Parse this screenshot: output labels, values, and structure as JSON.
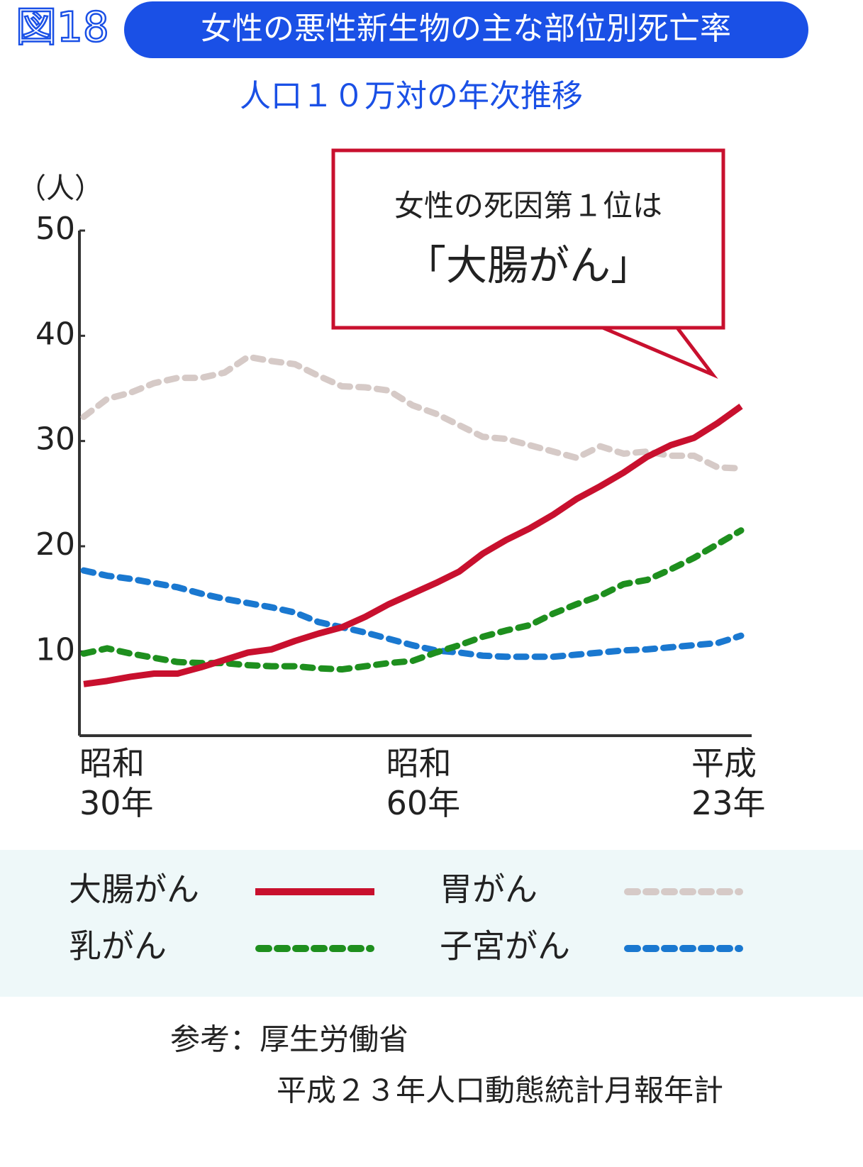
{
  "chart_data": {
    "type": "line",
    "figure_label": "図18",
    "title": "女性の悪性新生物の主な部位別死亡率",
    "subtitle": "人口１０万対の年次推移",
    "y_label": "（人）",
    "annotation": [
      "女性の死因第１位は",
      "「大腸がん」"
    ],
    "source": [
      "参考：厚生労働省",
      "平成２３年人口動態統計月報年計"
    ],
    "categories": [
      "昭和\n30年",
      null,
      null,
      null,
      null,
      null,
      null,
      null,
      null,
      null,
      null,
      null,
      null,
      null,
      null,
      "昭和\n60年",
      null,
      null,
      null,
      null,
      null,
      null,
      null,
      null,
      null,
      null,
      null,
      null,
      "平成\n23年"
    ],
    "ylim": [
      2,
      50
    ],
    "yticks": [
      10,
      20,
      30,
      40,
      50
    ],
    "series": [
      {
        "name": "大腸がん",
        "color": "#c8102e",
        "linestyle": "solid",
        "values": [
          6.9,
          7.2,
          7.6,
          7.9,
          7.9,
          8.5,
          9.2,
          9.9,
          10.2,
          11.0,
          11.7,
          12.3,
          13.3,
          14.5,
          15.5,
          16.5,
          17.6,
          19.3,
          20.6,
          21.7,
          23.0,
          24.5,
          25.7,
          27.0,
          28.5,
          29.6,
          30.3,
          31.7,
          33.3
        ]
      },
      {
        "name": "胃がん",
        "color": "#d6cac7",
        "linestyle": "dashed",
        "values": [
          32.3,
          34.0,
          34.6,
          35.5,
          36.0,
          36.0,
          36.5,
          38.0,
          37.6,
          37.3,
          36.2,
          35.2,
          35.1,
          34.8,
          33.4,
          32.6,
          31.5,
          30.4,
          30.2,
          29.6,
          29.0,
          28.4,
          29.5,
          28.8,
          29.0,
          28.6,
          28.6,
          27.5,
          27.4
        ]
      },
      {
        "name": "乳がん",
        "color": "#1e8f1e",
        "linestyle": "dashed",
        "values": [
          9.8,
          10.3,
          9.8,
          9.4,
          9.0,
          8.9,
          8.9,
          8.7,
          8.6,
          8.6,
          8.4,
          8.3,
          8.6,
          8.9,
          9.1,
          9.9,
          10.6,
          11.4,
          12.0,
          12.5,
          13.6,
          14.5,
          15.3,
          16.4,
          16.8,
          17.8,
          18.9,
          20.2,
          21.5
        ]
      },
      {
        "name": "子宮がん",
        "color": "#1a78d0",
        "linestyle": "dashed",
        "values": [
          17.7,
          17.2,
          16.9,
          16.5,
          16.1,
          15.5,
          15.0,
          14.6,
          14.2,
          13.7,
          12.8,
          12.3,
          11.8,
          11.2,
          10.6,
          10.1,
          9.9,
          9.6,
          9.5,
          9.5,
          9.5,
          9.7,
          9.9,
          10.1,
          10.2,
          10.4,
          10.6,
          10.8,
          11.5
        ]
      }
    ]
  }
}
